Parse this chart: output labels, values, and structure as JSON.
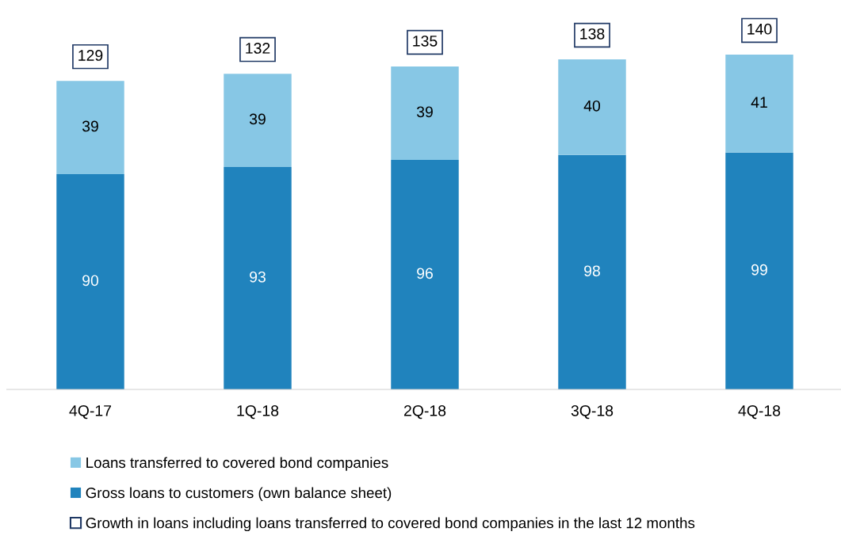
{
  "chart_data": {
    "type": "bar",
    "stacked": true,
    "categories": [
      "4Q-17",
      "1Q-18",
      "2Q-18",
      "3Q-18",
      "4Q-18"
    ],
    "series": [
      {
        "name": "Gross loans to customers (own balance sheet)",
        "color": "#2083bd",
        "values": [
          90,
          93,
          96,
          98,
          99
        ]
      },
      {
        "name": "Loans transferred to covered bond companies",
        "color": "#87c7e5",
        "values": [
          39,
          39,
          39,
          40,
          41
        ]
      }
    ],
    "data_labels": true,
    "totals": [
      "129",
      "132",
      "135",
      "138",
      "140"
    ],
    "annotations": [
      "Growth in loans including loans transferred to covered bond companies in the last 12 months"
    ],
    "legend": "bottom",
    "grid": false
  }
}
